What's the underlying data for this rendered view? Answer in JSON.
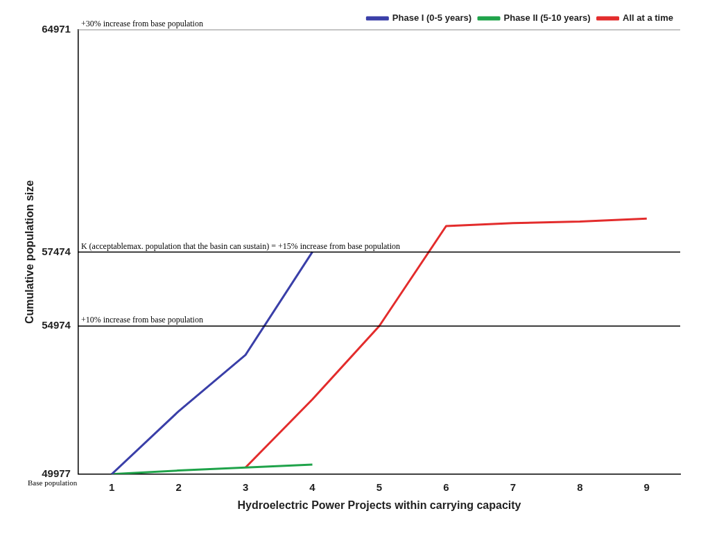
{
  "chart_data": {
    "type": "line",
    "xlabel": "Hydroelectric Power Projects within carrying capacity",
    "ylabel": "Cumulative population size",
    "categories": [
      "1",
      "2",
      "3",
      "4",
      "5",
      "6",
      "7",
      "8",
      "9"
    ],
    "series": [
      {
        "name": "Phase I (0-5 years)",
        "color": "#3a3fa8",
        "values": [
          49977,
          52100,
          54000,
          57474,
          null,
          null,
          null,
          null,
          null
        ]
      },
      {
        "name": "Phase II (5-10 years)",
        "color": "#1fa34a",
        "values": [
          49977,
          50100,
          50200,
          50300,
          null,
          null,
          null,
          null,
          null
        ]
      },
      {
        "name": "All at a time",
        "color": "#e32c2c",
        "values": [
          null,
          null,
          50200,
          52500,
          54974,
          58350,
          58450,
          58500,
          58600
        ]
      }
    ],
    "ylim": [
      49977,
      64971
    ],
    "yticks": [
      49977,
      54974,
      57474,
      64971
    ],
    "grid": false,
    "legend": "top right",
    "marker": "none",
    "ref_lines": [
      {
        "axis": "y",
        "value": 64971,
        "label": "+30% increase from base population",
        "color": "#b0b0b0"
      },
      {
        "axis": "y",
        "value": 57474,
        "label": "K (acceptablemax. population that the basin can sustain) = +15% increase from base population",
        "color": "#000000"
      },
      {
        "axis": "y",
        "value": 54974,
        "label": "+10% increase from base population",
        "color": "#000000"
      }
    ],
    "annotations": [
      "Base population"
    ]
  }
}
